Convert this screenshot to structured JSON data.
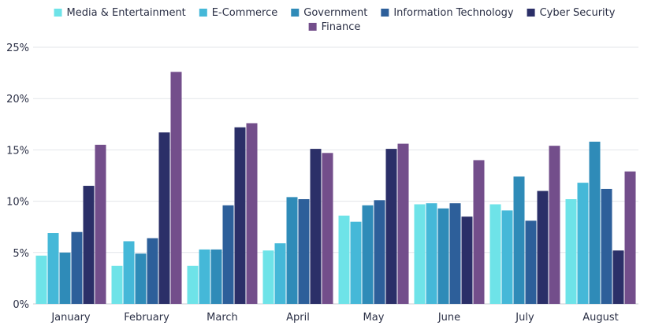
{
  "chart_data": {
    "type": "bar",
    "title": "",
    "xlabel": "",
    "ylabel": "",
    "categories": [
      "January",
      "February",
      "March",
      "April",
      "May",
      "June",
      "July",
      "August"
    ],
    "ylim": [
      0,
      25
    ],
    "yticks": [
      0,
      5,
      10,
      15,
      20,
      25
    ],
    "ytick_labels": [
      "0%",
      "5%",
      "10%",
      "15%",
      "20%",
      "25%"
    ],
    "grid": true,
    "legend_position": "top",
    "series": [
      {
        "name": "Media & Entertainment",
        "color": "#6ee3e8",
        "values": [
          4.7,
          3.7,
          3.7,
          5.2,
          8.6,
          9.7,
          9.7,
          10.2
        ]
      },
      {
        "name": "E-Commerce",
        "color": "#45b8d8",
        "values": [
          6.9,
          6.1,
          5.3,
          5.9,
          8.0,
          9.8,
          9.1,
          11.8
        ]
      },
      {
        "name": "Government",
        "color": "#2f8bb8",
        "values": [
          5.0,
          4.9,
          5.3,
          10.4,
          9.6,
          9.3,
          12.4,
          15.8
        ]
      },
      {
        "name": "Information Technology",
        "color": "#2d5f9a",
        "values": [
          7.0,
          6.4,
          9.6,
          10.2,
          10.1,
          9.8,
          8.1,
          11.2
        ]
      },
      {
        "name": "Cyber Security",
        "color": "#2b2f68",
        "values": [
          11.5,
          16.7,
          17.2,
          15.1,
          15.1,
          8.5,
          11.0,
          5.2
        ]
      },
      {
        "name": "Finance",
        "color": "#734e8b",
        "values": [
          15.5,
          22.6,
          17.6,
          14.7,
          15.6,
          14.0,
          15.4,
          12.9
        ]
      }
    ]
  }
}
